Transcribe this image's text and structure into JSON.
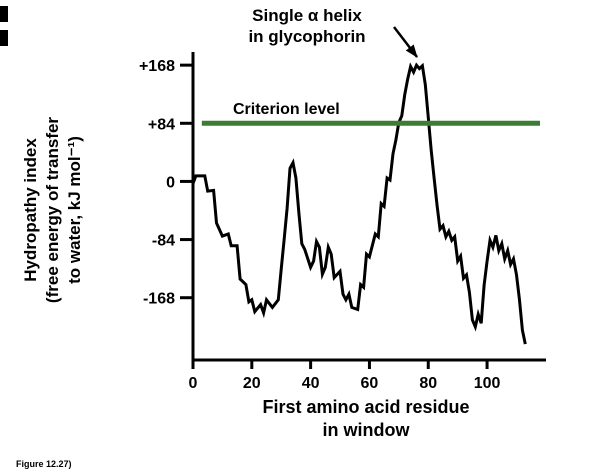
{
  "colors": {
    "criterion_line": "#3a7d33",
    "series": "#000000",
    "axis": "#000000"
  },
  "annotation": {
    "line1": "Single α helix",
    "line2": "in glycophorin"
  },
  "criterion_label": "Criterion level",
  "y_axis_title": {
    "line1": "Hydropathy index",
    "line2": "(free energy of transfer",
    "line3": "to water, kJ mol⁻¹)"
  },
  "x_axis_title": {
    "line1": "First amino acid residue",
    "line2": "in window"
  },
  "figure_caption": "Figure 12.27)",
  "chart_data": {
    "type": "line",
    "title": "",
    "xlabel": "First amino acid residue in window",
    "ylabel": "Hydropathy index (free energy of transfer to water, kJ mol⁻¹)",
    "xlim": [
      0,
      118
    ],
    "ylim": [
      -258,
      187
    ],
    "grid": false,
    "xticks": [
      {
        "v": 0,
        "label": "0"
      },
      {
        "v": 20,
        "label": "20"
      },
      {
        "v": 40,
        "label": "40"
      },
      {
        "v": 60,
        "label": "60"
      },
      {
        "v": 80,
        "label": "80"
      },
      {
        "v": 100,
        "label": "100"
      }
    ],
    "yticks": [
      {
        "v": 168,
        "label": "+168"
      },
      {
        "v": 84,
        "label": "+84"
      },
      {
        "v": 0,
        "label": "0"
      },
      {
        "v": -84,
        "label": "-84"
      },
      {
        "v": -168,
        "label": "-168"
      }
    ],
    "criterion": {
      "level": 84,
      "label": "Criterion level",
      "x_start": 3,
      "x_end": 118
    },
    "series": [
      {
        "name": "Hydropathy index",
        "points": [
          [
            0,
            -3
          ],
          [
            1,
            8
          ],
          [
            4,
            8
          ],
          [
            5,
            -14
          ],
          [
            7,
            -13
          ],
          [
            8,
            -60
          ],
          [
            10,
            -79
          ],
          [
            12,
            -76
          ],
          [
            13,
            -93
          ],
          [
            15,
            -93
          ],
          [
            16,
            -141
          ],
          [
            18,
            -149
          ],
          [
            19,
            -174
          ],
          [
            20,
            -171
          ],
          [
            21,
            -188
          ],
          [
            23,
            -178
          ],
          [
            24,
            -190
          ],
          [
            25,
            -171
          ],
          [
            27,
            -182
          ],
          [
            29,
            -171
          ],
          [
            30,
            -127
          ],
          [
            31,
            -83
          ],
          [
            32,
            -39
          ],
          [
            33,
            19
          ],
          [
            34,
            27
          ],
          [
            35,
            5
          ],
          [
            36,
            -46
          ],
          [
            37,
            -90
          ],
          [
            38,
            -98
          ],
          [
            40,
            -124
          ],
          [
            41,
            -115
          ],
          [
            42,
            -87
          ],
          [
            43,
            -95
          ],
          [
            44,
            -134
          ],
          [
            45,
            -124
          ],
          [
            46,
            -95
          ],
          [
            47,
            -105
          ],
          [
            48,
            -139
          ],
          [
            50,
            -130
          ],
          [
            51,
            -163
          ],
          [
            52,
            -171
          ],
          [
            53,
            -163
          ],
          [
            54,
            -182
          ],
          [
            56,
            -185
          ],
          [
            57,
            -149
          ],
          [
            58,
            -153
          ],
          [
            59,
            -105
          ],
          [
            60,
            -109
          ],
          [
            62,
            -76
          ],
          [
            63,
            -80
          ],
          [
            64,
            -32
          ],
          [
            65,
            -36
          ],
          [
            66,
            5
          ],
          [
            67,
            2
          ],
          [
            68,
            40
          ],
          [
            69,
            60
          ],
          [
            70,
            85
          ],
          [
            71,
            95
          ],
          [
            72,
            125
          ],
          [
            73,
            148
          ],
          [
            74,
            166
          ],
          [
            75,
            158
          ],
          [
            76,
            168
          ],
          [
            77,
            163
          ],
          [
            78,
            167
          ],
          [
            79,
            140
          ],
          [
            80,
            92
          ],
          [
            81,
            45
          ],
          [
            82,
            5
          ],
          [
            83,
            -35
          ],
          [
            84,
            -69
          ],
          [
            85,
            -64
          ],
          [
            86,
            -80
          ],
          [
            87,
            -72
          ],
          [
            88,
            -85
          ],
          [
            89,
            -80
          ],
          [
            90,
            -115
          ],
          [
            91,
            -108
          ],
          [
            92,
            -140
          ],
          [
            93,
            -135
          ],
          [
            94,
            -160
          ],
          [
            95,
            -200
          ],
          [
            96,
            -210
          ],
          [
            97,
            -192
          ],
          [
            98,
            -205
          ],
          [
            99,
            -150
          ],
          [
            100,
            -115
          ],
          [
            101,
            -85
          ],
          [
            102,
            -95
          ],
          [
            103,
            -78
          ],
          [
            104,
            -100
          ],
          [
            105,
            -90
          ],
          [
            106,
            -112
          ],
          [
            107,
            -100
          ],
          [
            108,
            -120
          ],
          [
            109,
            -112
          ],
          [
            110,
            -135
          ],
          [
            111,
            -170
          ],
          [
            112,
            -215
          ],
          [
            113,
            -235
          ]
        ]
      }
    ]
  }
}
